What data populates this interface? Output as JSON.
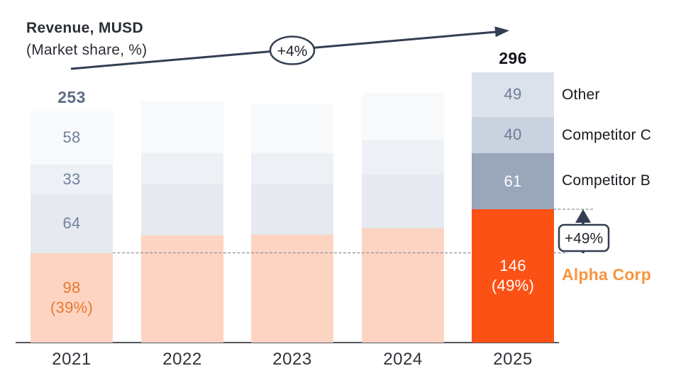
{
  "title": {
    "line1": "Revenue, MUSD",
    "line2": "(Market share, %)"
  },
  "annotations": {
    "cagr_badge": "+4%",
    "alpha_growth_badge": "+49%"
  },
  "legend": {
    "items": [
      {
        "label": "Other"
      },
      {
        "label": "Competitor C"
      },
      {
        "label": "Competitor B"
      },
      {
        "label": "Alpha Corp"
      }
    ]
  },
  "colors": {
    "navy": "#333e52",
    "dashed_line": "#8a939c",
    "axis": "#55565b",
    "gray_blue_text": "#72809a",
    "orange_text": "#e5792c",
    "alpha_legend_orange": "#f9953f",
    "total_2021_text": "#5f6c85",
    "total_2025_text": "#14161b",
    "segment_label_colors": {
      "2021": [
        "#e5792c",
        "#72809a",
        "#72809a",
        "#72809a"
      ],
      "2025": [
        "#ffffff",
        "#ffffff",
        "#6e7c96",
        "#6e7c96"
      ]
    }
  },
  "chart_data": {
    "type": "bar",
    "stacked": true,
    "title": "Revenue, MUSD (Market share, %)",
    "x_categories": [
      "2021",
      "2022",
      "2023",
      "2024",
      "2025"
    ],
    "series": [
      {
        "name": "Alpha Corp",
        "color_muted": "#fdd4c2",
        "color_final": "#fc5115",
        "values": [
          98,
          117,
          118,
          125,
          146
        ]
      },
      {
        "name": "Competitor B",
        "color_muted": "#e6e9ef",
        "color_final": "#9aa6ba",
        "values": [
          64,
          57,
          56,
          59,
          61
        ]
      },
      {
        "name": "Competitor C",
        "color_muted": "#edf1f6",
        "color_final": "#c9d2df",
        "values": [
          33,
          33,
          33,
          37,
          40
        ]
      },
      {
        "name": "Other",
        "color_muted": "#f7f9fb",
        "color_final": "#dbe2ec",
        "values": [
          58,
          57,
          54,
          52,
          49
        ]
      }
    ],
    "totals_labeled": [
      {
        "category": "2021",
        "value": 253
      },
      {
        "category": "2025",
        "value": 296
      }
    ],
    "alpha_market_share": [
      {
        "category": "2021",
        "share": "(39%)"
      },
      {
        "category": "2025",
        "share": "(49%)"
      }
    ],
    "value_labels_shown_for": [
      "2021",
      "2025"
    ],
    "growth_total_2021_2025": "+4%",
    "growth_alpha_2021_2025": "+49%"
  }
}
